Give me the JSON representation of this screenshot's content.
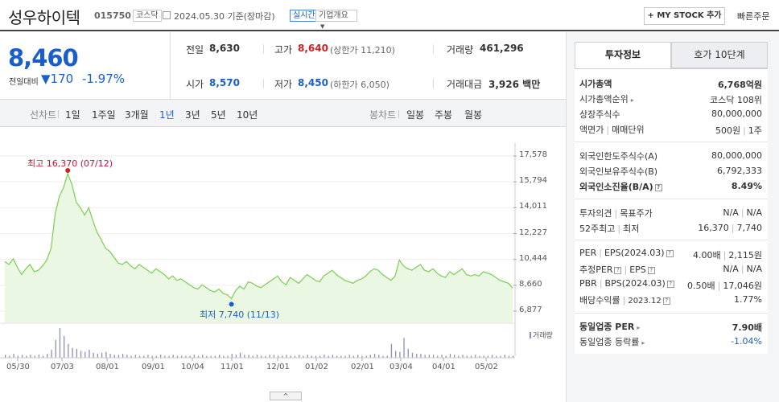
{
  "header": {
    "name": "성우하이텍",
    "code": "015750",
    "market": "코스닥",
    "date": "2024.05.30 기준(장마감)",
    "realtime": "실시간",
    "overview": "기업개요",
    "mystock": "+ MY STOCK 추가",
    "quick_order": "빠른주문"
  },
  "price": {
    "current": "8,460",
    "compare_label": "전일대비",
    "change": "▼170",
    "change_pct": "-1.97%"
  },
  "quote": {
    "prev_label": "전일",
    "prev": "8,630",
    "high_label": "고가",
    "high": "8,640",
    "upper_label": "(상한가",
    "upper": "11,210)",
    "volume_label": "거래량",
    "volume": "461,296",
    "open_label": "시가",
    "open": "8,570",
    "low_label": "저가",
    "low": "8,450",
    "lower_label": "(하한가",
    "lower": "6,050)",
    "amount_label": "거래대금",
    "amount": "3,926",
    "amount_unit": "백만"
  },
  "periods": {
    "line_label": "선차트",
    "items": [
      "1일",
      "1주일",
      "3개월",
      "1년",
      "3년",
      "5년",
      "10년"
    ],
    "selected": "1년",
    "candle_label": "봉차트",
    "candle_items": [
      "일봉",
      "주봉",
      "월봉"
    ]
  },
  "chart": {
    "high_label": "최고 16,370 (07/12)",
    "low_label": "최저 7,740 (11/13)",
    "volume_label": "거래량",
    "collapse": "^"
  },
  "chart_data": {
    "type": "area",
    "title": "",
    "y_ticks": [
      "17,578",
      "15,794",
      "14,011",
      "12,227",
      "10,444",
      "8,660",
      "6,877"
    ],
    "x_ticks": [
      "05/30",
      "07/03",
      "08/01",
      "09/01",
      "10/04",
      "11/01",
      "12/01",
      "01/02",
      "02/01",
      "03/04",
      "04/01",
      "05/02"
    ],
    "ylim": [
      6877,
      17578
    ],
    "line_color": "#7ccd55",
    "fill_color": "#eaf7e3",
    "series": [
      {
        "values": [
          10300,
          10100,
          10500,
          9900,
          9400,
          9800,
          10100,
          9600,
          9700,
          10000,
          10400,
          11200,
          13600,
          14800,
          15400,
          16370,
          15600,
          14400,
          14000,
          13500,
          14000,
          13100,
          12300,
          11800,
          11200,
          11000,
          10600,
          10200,
          10100,
          10300,
          10000,
          9800,
          10100,
          9900,
          9700,
          9500,
          9800,
          9600,
          9400,
          9100,
          9300,
          9000,
          9100,
          8900,
          8700,
          8500,
          8400,
          8700,
          8500,
          8300,
          8200,
          8400,
          8100,
          8000,
          7740,
          8300,
          8600,
          8400,
          8900,
          8800,
          8600,
          8500,
          8700,
          8900,
          9100,
          9300,
          8900,
          8700,
          9200,
          9000,
          8800,
          9100,
          9400,
          9200,
          9000,
          8900,
          9300,
          9500,
          9700,
          9400,
          9200,
          9000,
          8900,
          8800,
          9000,
          9100,
          9300,
          9600,
          9800,
          9700,
          9400,
          9200,
          9000,
          9300,
          10400,
          10000,
          9800,
          9700,
          9900,
          10100,
          9700,
          9600,
          9800,
          9500,
          9300,
          9200,
          9600,
          9400,
          9600,
          9800,
          9400,
          9300,
          9400,
          9300,
          9600,
          9500,
          9400,
          9200,
          9000,
          8900,
          8800,
          8460
        ]
      }
    ],
    "volume": [
      3,
      2,
      4,
      2,
      3,
      2,
      3,
      2,
      3,
      2,
      4,
      8,
      18,
      30,
      22,
      14,
      10,
      9,
      7,
      6,
      8,
      5,
      4,
      5,
      6,
      4,
      3,
      3,
      4,
      3,
      2,
      3,
      2,
      2,
      3,
      2,
      2,
      3,
      2,
      2,
      3,
      2,
      2,
      2,
      2,
      3,
      2,
      3,
      2,
      2,
      2,
      3,
      2,
      2,
      4,
      3,
      5,
      3,
      3,
      2,
      3,
      2,
      2,
      3,
      3,
      2,
      2,
      3,
      2,
      2,
      3,
      2,
      3,
      2,
      2,
      2,
      3,
      2,
      3,
      2,
      2,
      2,
      3,
      2,
      3,
      2,
      2,
      3,
      4,
      3,
      2,
      2,
      14,
      7,
      6,
      20,
      9,
      5,
      4,
      4,
      3,
      3,
      3,
      2,
      3,
      2,
      4,
      3,
      2,
      3,
      2,
      2,
      3,
      2,
      2,
      2,
      3,
      2,
      2,
      3,
      2,
      2
    ]
  },
  "tabs": {
    "invest": "투자정보",
    "ask10": "호가 10단계"
  },
  "info": {
    "mcap_label": "시가총액",
    "mcap": "6,768억원",
    "mcap_rank_label": "시가총액순위",
    "mcap_rank": "코스닥 108위",
    "shares_label": "상장주식수",
    "shares": "80,000,000",
    "par_label": "액면가",
    "unit_label": "매매단위",
    "par": "500원",
    "unit": "1주",
    "foreign_limit_label": "외국인한도주식수(A)",
    "foreign_limit": "80,000,000",
    "foreign_hold_label": "외국인보유주식수(B)",
    "foreign_hold": "6,792,333",
    "foreign_ratio_label": "외국인소진율(B/A)",
    "foreign_ratio": "8.49%",
    "opinion_label": "투자의견",
    "target_label": "목표주가",
    "opinion": "N/A",
    "target": "N/A",
    "w52_label": "52주최고",
    "w52_low_label": "최저",
    "w52_high": "16,370",
    "w52_low": "7,740",
    "per_label": "PER",
    "eps_label": "EPS(2024.03)",
    "per": "4.00배",
    "eps": "2,115원",
    "est_per_label": "추정PER",
    "est_eps_label": "EPS",
    "est_per": "N/A",
    "est_eps": "N/A",
    "pbr_label": "PBR",
    "bps_label": "BPS(2024.03)",
    "pbr": "0.50배",
    "bps": "17,046원",
    "div_label": "배당수익률",
    "div_date": "2023.12",
    "div": "1.77%",
    "sector_per_label": "동일업종 PER",
    "sector_per": "7.90배",
    "sector_chg_label": "동일업종 등락률",
    "sector_chg": "-1.04%"
  }
}
